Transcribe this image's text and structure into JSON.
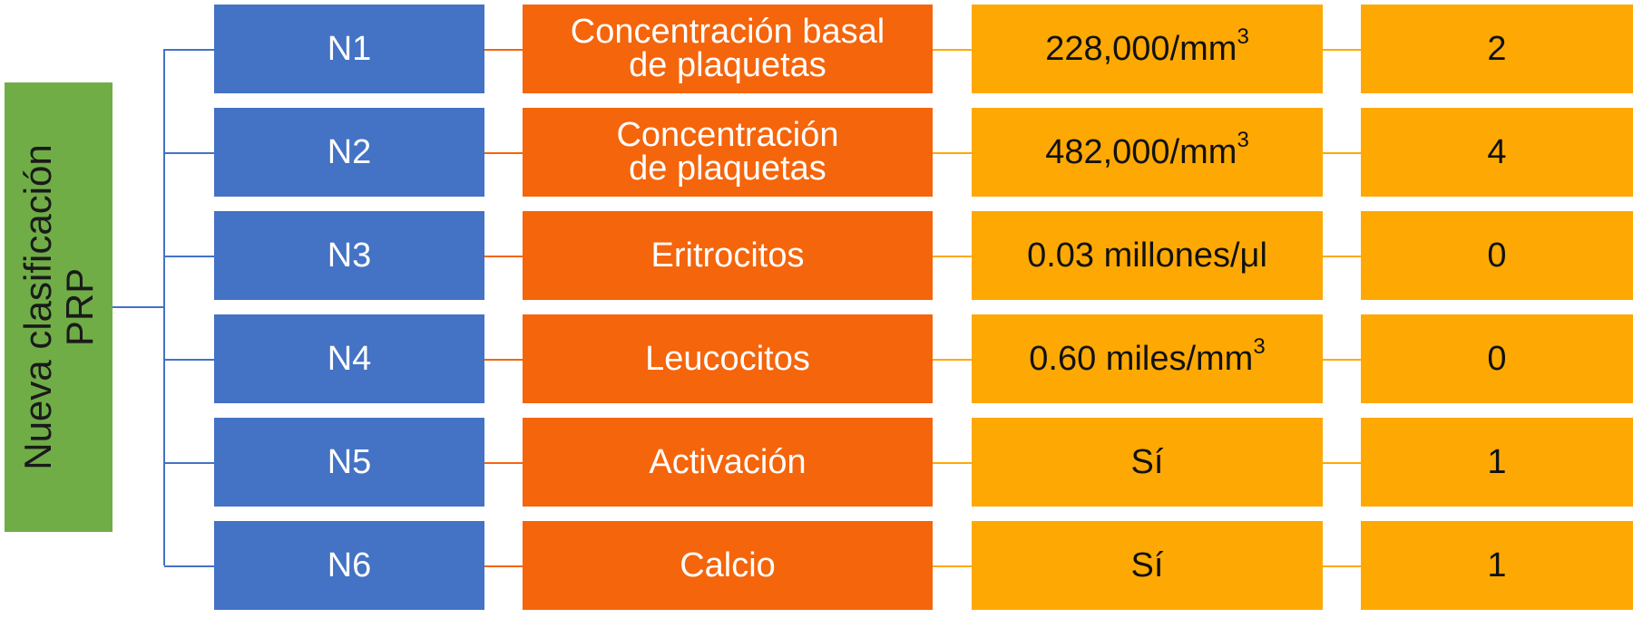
{
  "root": {
    "line1": "Nueva clasificación",
    "line2": "PRP"
  },
  "rows": [
    {
      "level": "N1",
      "param_line1": "Concentración basal",
      "param_line2": "de plaquetas",
      "value": "228,000/mm",
      "value_sup": "3",
      "score": "2"
    },
    {
      "level": "N2",
      "param_line1": "Concentración",
      "param_line2": "de plaquetas",
      "value": "482,000/mm",
      "value_sup": "3",
      "score": "4"
    },
    {
      "level": "N3",
      "param_line1": "Eritrocitos",
      "param_line2": "",
      "value": "0.03 millones/μl",
      "value_sup": "",
      "score": "0"
    },
    {
      "level": "N4",
      "param_line1": "Leucocitos",
      "param_line2": "",
      "value": "0.60 miles/mm",
      "value_sup": "3",
      "score": "0"
    },
    {
      "level": "N5",
      "param_line1": "Activación",
      "param_line2": "",
      "value": "Sí",
      "value_sup": "",
      "score": "1"
    },
    {
      "level": "N6",
      "param_line1": "Calcio",
      "param_line2": "",
      "value": "Sí",
      "value_sup": "",
      "score": "1"
    }
  ],
  "colors": {
    "root": "#70ad47",
    "level": "#4472c4",
    "parameter": "#f4650c",
    "value": "#fea903",
    "score": "#fea903"
  }
}
